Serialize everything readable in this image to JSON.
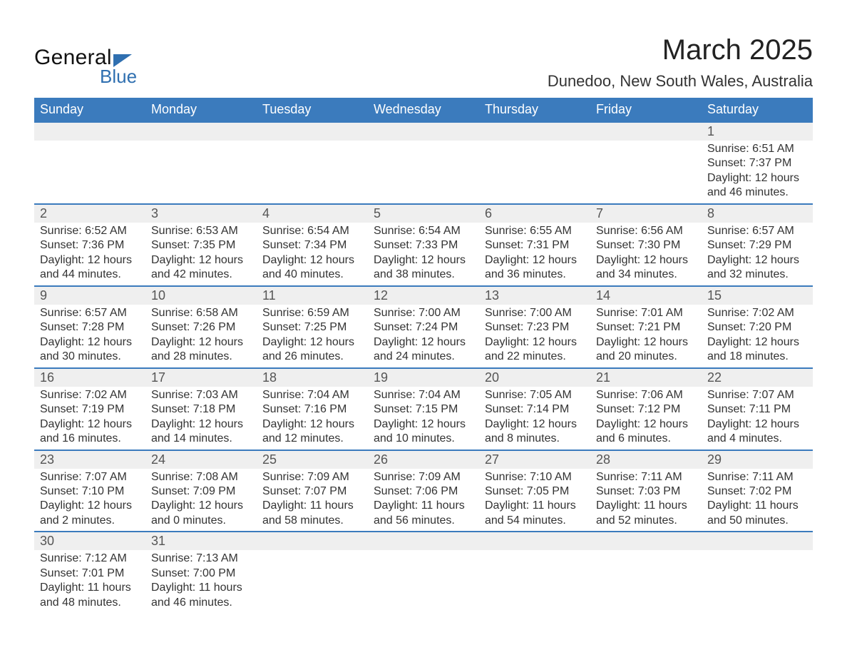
{
  "brand": {
    "general": "General",
    "blue": "Blue"
  },
  "title": "March 2025",
  "location": "Dunedoo, New South Wales, Australia",
  "colors": {
    "header_bg": "#3b7bbd",
    "header_text": "#ffffff",
    "row_border": "#3b7bbd",
    "daynum_bg": "#efefef",
    "text": "#333333",
    "brand_blue": "#2f6fb0"
  },
  "weekdays": [
    "Sunday",
    "Monday",
    "Tuesday",
    "Wednesday",
    "Thursday",
    "Friday",
    "Saturday"
  ],
  "weeks": [
    [
      null,
      null,
      null,
      null,
      null,
      null,
      {
        "n": "1",
        "sr": "Sunrise: 6:51 AM",
        "ss": "Sunset: 7:37 PM",
        "dl1": "Daylight: 12 hours",
        "dl2": "and 46 minutes."
      }
    ],
    [
      {
        "n": "2",
        "sr": "Sunrise: 6:52 AM",
        "ss": "Sunset: 7:36 PM",
        "dl1": "Daylight: 12 hours",
        "dl2": "and 44 minutes."
      },
      {
        "n": "3",
        "sr": "Sunrise: 6:53 AM",
        "ss": "Sunset: 7:35 PM",
        "dl1": "Daylight: 12 hours",
        "dl2": "and 42 minutes."
      },
      {
        "n": "4",
        "sr": "Sunrise: 6:54 AM",
        "ss": "Sunset: 7:34 PM",
        "dl1": "Daylight: 12 hours",
        "dl2": "and 40 minutes."
      },
      {
        "n": "5",
        "sr": "Sunrise: 6:54 AM",
        "ss": "Sunset: 7:33 PM",
        "dl1": "Daylight: 12 hours",
        "dl2": "and 38 minutes."
      },
      {
        "n": "6",
        "sr": "Sunrise: 6:55 AM",
        "ss": "Sunset: 7:31 PM",
        "dl1": "Daylight: 12 hours",
        "dl2": "and 36 minutes."
      },
      {
        "n": "7",
        "sr": "Sunrise: 6:56 AM",
        "ss": "Sunset: 7:30 PM",
        "dl1": "Daylight: 12 hours",
        "dl2": "and 34 minutes."
      },
      {
        "n": "8",
        "sr": "Sunrise: 6:57 AM",
        "ss": "Sunset: 7:29 PM",
        "dl1": "Daylight: 12 hours",
        "dl2": "and 32 minutes."
      }
    ],
    [
      {
        "n": "9",
        "sr": "Sunrise: 6:57 AM",
        "ss": "Sunset: 7:28 PM",
        "dl1": "Daylight: 12 hours",
        "dl2": "and 30 minutes."
      },
      {
        "n": "10",
        "sr": "Sunrise: 6:58 AM",
        "ss": "Sunset: 7:26 PM",
        "dl1": "Daylight: 12 hours",
        "dl2": "and 28 minutes."
      },
      {
        "n": "11",
        "sr": "Sunrise: 6:59 AM",
        "ss": "Sunset: 7:25 PM",
        "dl1": "Daylight: 12 hours",
        "dl2": "and 26 minutes."
      },
      {
        "n": "12",
        "sr": "Sunrise: 7:00 AM",
        "ss": "Sunset: 7:24 PM",
        "dl1": "Daylight: 12 hours",
        "dl2": "and 24 minutes."
      },
      {
        "n": "13",
        "sr": "Sunrise: 7:00 AM",
        "ss": "Sunset: 7:23 PM",
        "dl1": "Daylight: 12 hours",
        "dl2": "and 22 minutes."
      },
      {
        "n": "14",
        "sr": "Sunrise: 7:01 AM",
        "ss": "Sunset: 7:21 PM",
        "dl1": "Daylight: 12 hours",
        "dl2": "and 20 minutes."
      },
      {
        "n": "15",
        "sr": "Sunrise: 7:02 AM",
        "ss": "Sunset: 7:20 PM",
        "dl1": "Daylight: 12 hours",
        "dl2": "and 18 minutes."
      }
    ],
    [
      {
        "n": "16",
        "sr": "Sunrise: 7:02 AM",
        "ss": "Sunset: 7:19 PM",
        "dl1": "Daylight: 12 hours",
        "dl2": "and 16 minutes."
      },
      {
        "n": "17",
        "sr": "Sunrise: 7:03 AM",
        "ss": "Sunset: 7:18 PM",
        "dl1": "Daylight: 12 hours",
        "dl2": "and 14 minutes."
      },
      {
        "n": "18",
        "sr": "Sunrise: 7:04 AM",
        "ss": "Sunset: 7:16 PM",
        "dl1": "Daylight: 12 hours",
        "dl2": "and 12 minutes."
      },
      {
        "n": "19",
        "sr": "Sunrise: 7:04 AM",
        "ss": "Sunset: 7:15 PM",
        "dl1": "Daylight: 12 hours",
        "dl2": "and 10 minutes."
      },
      {
        "n": "20",
        "sr": "Sunrise: 7:05 AM",
        "ss": "Sunset: 7:14 PM",
        "dl1": "Daylight: 12 hours",
        "dl2": "and 8 minutes."
      },
      {
        "n": "21",
        "sr": "Sunrise: 7:06 AM",
        "ss": "Sunset: 7:12 PM",
        "dl1": "Daylight: 12 hours",
        "dl2": "and 6 minutes."
      },
      {
        "n": "22",
        "sr": "Sunrise: 7:07 AM",
        "ss": "Sunset: 7:11 PM",
        "dl1": "Daylight: 12 hours",
        "dl2": "and 4 minutes."
      }
    ],
    [
      {
        "n": "23",
        "sr": "Sunrise: 7:07 AM",
        "ss": "Sunset: 7:10 PM",
        "dl1": "Daylight: 12 hours",
        "dl2": "and 2 minutes."
      },
      {
        "n": "24",
        "sr": "Sunrise: 7:08 AM",
        "ss": "Sunset: 7:09 PM",
        "dl1": "Daylight: 12 hours",
        "dl2": "and 0 minutes."
      },
      {
        "n": "25",
        "sr": "Sunrise: 7:09 AM",
        "ss": "Sunset: 7:07 PM",
        "dl1": "Daylight: 11 hours",
        "dl2": "and 58 minutes."
      },
      {
        "n": "26",
        "sr": "Sunrise: 7:09 AM",
        "ss": "Sunset: 7:06 PM",
        "dl1": "Daylight: 11 hours",
        "dl2": "and 56 minutes."
      },
      {
        "n": "27",
        "sr": "Sunrise: 7:10 AM",
        "ss": "Sunset: 7:05 PM",
        "dl1": "Daylight: 11 hours",
        "dl2": "and 54 minutes."
      },
      {
        "n": "28",
        "sr": "Sunrise: 7:11 AM",
        "ss": "Sunset: 7:03 PM",
        "dl1": "Daylight: 11 hours",
        "dl2": "and 52 minutes."
      },
      {
        "n": "29",
        "sr": "Sunrise: 7:11 AM",
        "ss": "Sunset: 7:02 PM",
        "dl1": "Daylight: 11 hours",
        "dl2": "and 50 minutes."
      }
    ],
    [
      {
        "n": "30",
        "sr": "Sunrise: 7:12 AM",
        "ss": "Sunset: 7:01 PM",
        "dl1": "Daylight: 11 hours",
        "dl2": "and 48 minutes."
      },
      {
        "n": "31",
        "sr": "Sunrise: 7:13 AM",
        "ss": "Sunset: 7:00 PM",
        "dl1": "Daylight: 11 hours",
        "dl2": "and 46 minutes."
      },
      null,
      null,
      null,
      null,
      null
    ]
  ]
}
